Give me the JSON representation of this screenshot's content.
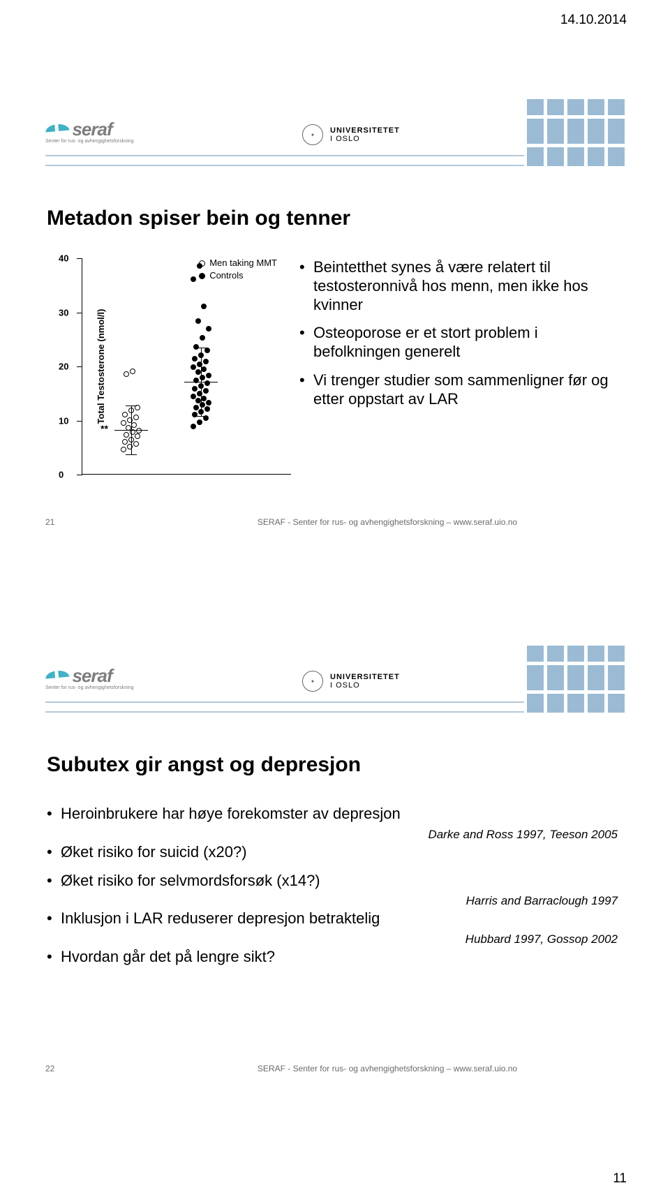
{
  "page_date": "14.10.2014",
  "page_number": "11",
  "logo": {
    "name": "seraf",
    "subtitle": "Senter for rus- og avhengighetsforskning"
  },
  "uio": {
    "line1": "UNIVERSITETET",
    "line2": "I OSLO"
  },
  "slide1": {
    "number": "21",
    "footer": "SERAF - Senter for rus- og avhengighetsforskning – www.seraf.uio.no",
    "title": "Metadon spiser bein og tenner",
    "bullets": [
      "Beintetthet synes å være relatert til testosteronnivå hos menn, men ikke hos kvinner",
      "Osteoporose er et stort problem i befolkningen generelt",
      "Vi trenger studier som sammenligner før og etter oppstart av LAR"
    ],
    "chart": {
      "type": "scatter",
      "ylabel": "Total Testosterone (nmol/l)",
      "ylim": [
        0,
        40
      ],
      "yticks": [
        0,
        10,
        20,
        30,
        40
      ],
      "legend": [
        {
          "marker": "open",
          "label": "Men taking MMT"
        },
        {
          "marker": "fill",
          "label": "Controls"
        }
      ],
      "significance_label": "**",
      "series": [
        {
          "x": 0,
          "marker": "open",
          "mean": 8.3,
          "sd_low": 3.8,
          "sd_high": 12.8,
          "points": [
            4.5,
            5,
            5.5,
            6,
            6.3,
            7,
            7.2,
            7.8,
            8,
            8.5,
            9,
            9.4,
            10,
            10.5,
            11,
            11.8,
            12.3,
            18.5,
            19
          ]
        },
        {
          "x": 1,
          "marker": "fill",
          "mean": 17.2,
          "sd_low": 10.8,
          "sd_high": 23.5,
          "points": [
            8.8,
            9.5,
            10.3,
            11,
            11.5,
            12,
            12.3,
            12.8,
            13.2,
            13.6,
            14,
            14.3,
            14.8,
            15.3,
            15.8,
            16.2,
            16.8,
            17.3,
            17.8,
            18.2,
            18.8,
            19.3,
            19.8,
            20.2,
            20.8,
            21.3,
            22,
            22.8,
            23.5,
            25.2,
            26.8,
            28.3,
            31,
            36,
            38.5
          ]
        }
      ]
    }
  },
  "slide2": {
    "number": "22",
    "footer": "SERAF - Senter for rus- og avhengighetsforskning – www.seraf.uio.no",
    "title": "Subutex gir angst og depresjon",
    "items": [
      {
        "text": "Heroinbrukere har høye forekomster av depresjon",
        "cite": "Darke and Ross 1997, Teeson 2005"
      },
      {
        "text": "Øket risiko for suicid (x20?)"
      },
      {
        "text": "Øket risiko for selvmordsforsøk (x14?)",
        "cite": "Harris and Barraclough 1997"
      },
      {
        "text": "Inklusjon i LAR reduserer depresjon betraktelig",
        "cite": "Hubbard 1997, Gossop 2002"
      },
      {
        "text": "Hvordan går det på lengre sikt?"
      }
    ]
  },
  "style": {
    "accent": "#9bbbd4",
    "rule": "#b4c8d8",
    "text": "#000000",
    "muted": "#6a6a6a"
  }
}
